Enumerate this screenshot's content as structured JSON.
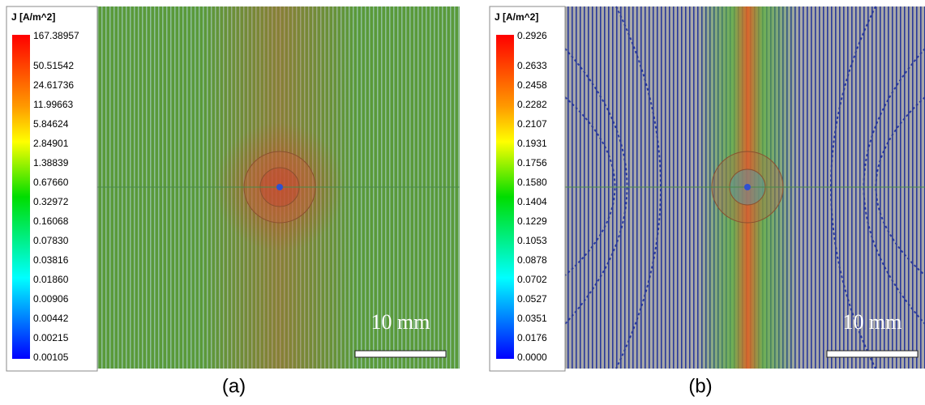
{
  "panels": [
    {
      "legend": {
        "title": "J [A/m^2]",
        "labels": [
          "167.38957",
          "50.51542",
          "24.61736",
          "11.99663",
          "5.84624",
          "2.84901",
          "1.38839",
          "0.67660",
          "0.32972",
          "0.16068",
          "0.07830",
          "0.03816",
          "0.01860",
          "0.00906",
          "0.00442",
          "0.00215",
          "0.00105"
        ]
      },
      "scale_bar": "10 mm",
      "caption": "(a)"
    },
    {
      "legend": {
        "title": "J [A/m^2]",
        "labels": [
          "0.2926",
          "0.2633",
          "0.2458",
          "0.2282",
          "0.2107",
          "0.1931",
          "0.1756",
          "0.1580",
          "0.1404",
          "0.1229",
          "0.1053",
          "0.0878",
          "0.0702",
          "0.0527",
          "0.0351",
          "0.0176",
          "0.0000"
        ]
      },
      "scale_bar": "10 mm",
      "caption": "(b)"
    }
  ]
}
